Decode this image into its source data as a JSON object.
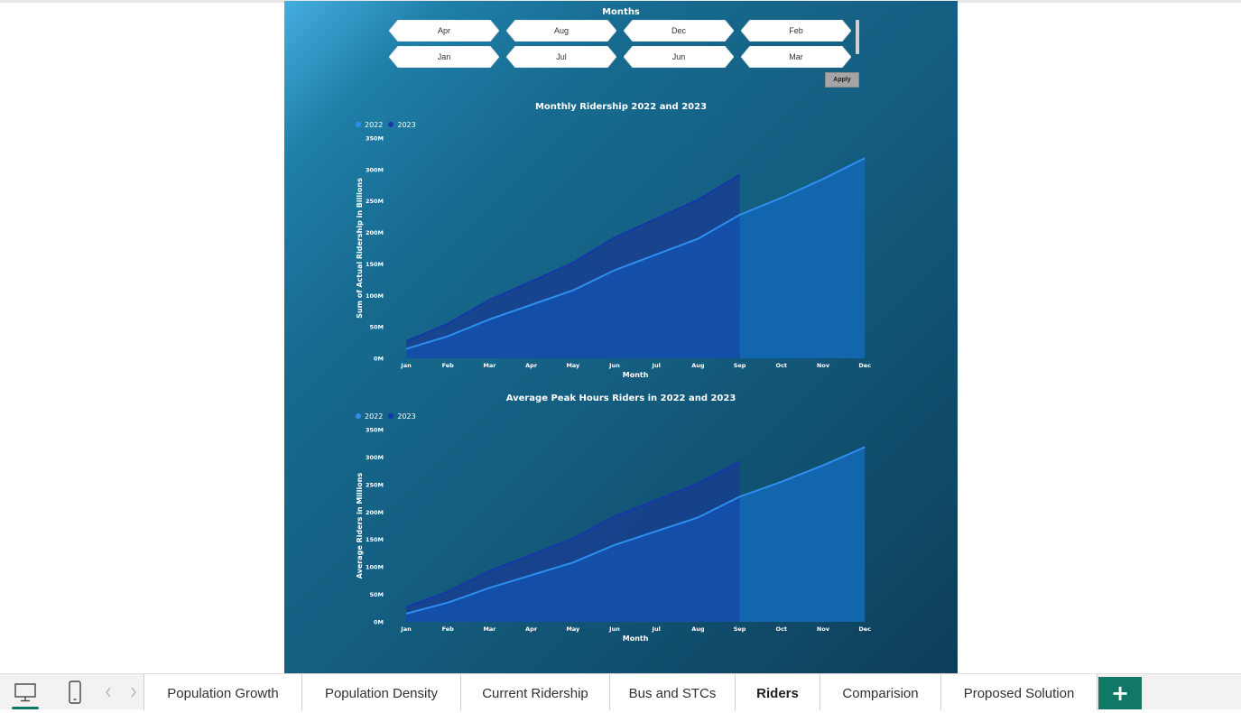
{
  "slicer": {
    "title": "Months",
    "chips": [
      "Apr",
      "Aug",
      "Dec",
      "Feb",
      "Jan",
      "Jul",
      "Jun",
      "Mar"
    ],
    "apply_label": "Apply"
  },
  "colors": {
    "series_2022": "#2e8ef0",
    "series_2023": "#1538a8",
    "fill_2022_future": "#1266ad",
    "fill_under": "#134fa8",
    "accent_green": "#117865"
  },
  "chart_data": [
    {
      "type": "area",
      "title": "Monthly Ridership 2022 and 2023",
      "xlabel": "Month",
      "ylabel": "Sum of Actual Ridership in Billions",
      "x": [
        "Jan",
        "Feb",
        "Mar",
        "Apr",
        "May",
        "Jun",
        "Jul",
        "Aug",
        "Sep",
        "Oct",
        "Nov",
        "Dec"
      ],
      "yticks": [
        "0M",
        "50M",
        "100M",
        "150M",
        "200M",
        "250M",
        "300M",
        "350M"
      ],
      "ylim": [
        0,
        350
      ],
      "legend_position": "top-left",
      "series": [
        {
          "name": "2022",
          "values": [
            15,
            35,
            62,
            85,
            108,
            140,
            165,
            190,
            228,
            255,
            285,
            318
          ]
        },
        {
          "name": "2023",
          "values": [
            27,
            55,
            93,
            122,
            152,
            192,
            222,
            252,
            292,
            null,
            null,
            null
          ]
        }
      ]
    },
    {
      "type": "area",
      "title": "Average Peak Hours Riders in 2022 and 2023",
      "xlabel": "Month",
      "ylabel": "Average Riders in Millions",
      "x": [
        "Jan",
        "Feb",
        "Mar",
        "Apr",
        "May",
        "Jun",
        "Jul",
        "Aug",
        "Sep",
        "Oct",
        "Nov",
        "Dec"
      ],
      "yticks": [
        "0M",
        "50M",
        "100M",
        "150M",
        "200M",
        "250M",
        "300M",
        "350M"
      ],
      "ylim": [
        0,
        350
      ],
      "legend_position": "top-left",
      "series": [
        {
          "name": "2022",
          "values": [
            15,
            35,
            62,
            85,
            108,
            140,
            165,
            190,
            228,
            255,
            285,
            318
          ]
        },
        {
          "name": "2023",
          "values": [
            27,
            55,
            93,
            122,
            152,
            192,
            222,
            252,
            292,
            null,
            null,
            null
          ]
        }
      ]
    }
  ],
  "tabs": [
    {
      "label": "Population Growth"
    },
    {
      "label": "Population Density"
    },
    {
      "label": "Current Ridership"
    },
    {
      "label": "Bus and STCs"
    },
    {
      "label": "Riders",
      "active": true
    },
    {
      "label": "Comparision"
    },
    {
      "label": "Proposed Solution"
    }
  ],
  "add_page_label": "+"
}
